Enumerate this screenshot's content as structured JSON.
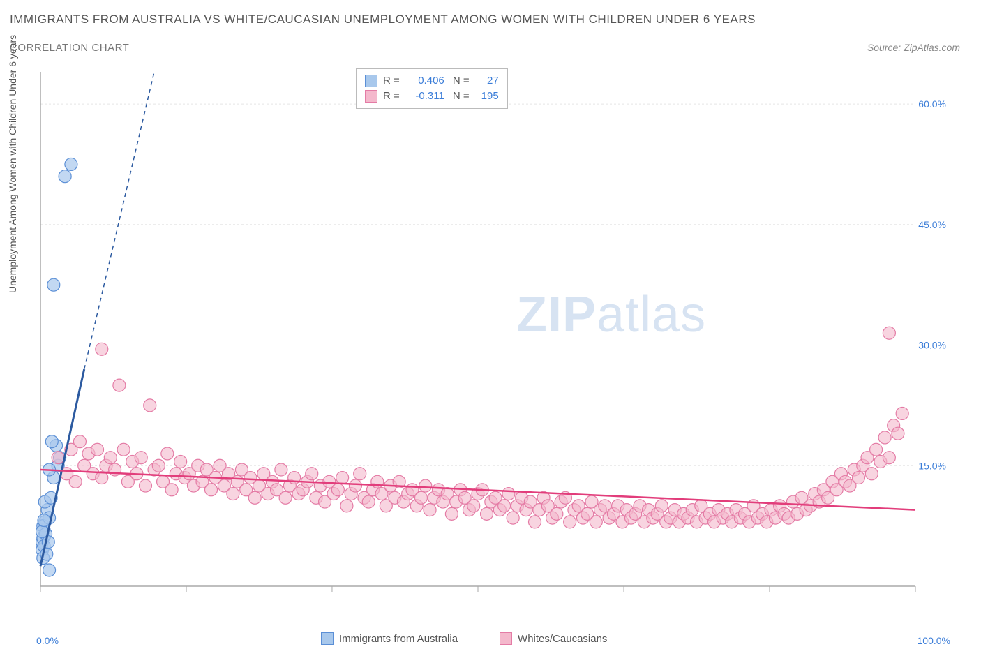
{
  "title": "IMMIGRANTS FROM AUSTRALIA VS WHITE/CAUCASIAN UNEMPLOYMENT AMONG WOMEN WITH CHILDREN UNDER 6 YEARS",
  "subtitle": "CORRELATION CHART",
  "source": "Source: ZipAtlas.com",
  "ylabel": "Unemployment Among Women with Children Under 6 years",
  "watermark_bold": "ZIP",
  "watermark_light": "atlas",
  "chart": {
    "type": "scatter",
    "xlim": [
      0,
      100
    ],
    "ylim": [
      0,
      64
    ],
    "x_axis_label_left": "0.0%",
    "x_axis_label_right": "100.0%",
    "y_ticks": [
      15.0,
      30.0,
      45.0,
      60.0
    ],
    "y_tick_labels": [
      "15.0%",
      "30.0%",
      "45.0%",
      "60.0%"
    ],
    "x_minor_ticks": [
      0,
      16.67,
      33.33,
      50,
      66.67,
      83.33,
      100
    ],
    "grid_color": "#e5e5e5",
    "axis_color": "#aaaaaa",
    "background": "#ffffff",
    "series": [
      {
        "name": "Immigrants from Australia",
        "color_fill": "#a8c8ec",
        "color_stroke": "#5b8fd6",
        "marker_radius": 9,
        "marker_opacity": 0.7,
        "trend": {
          "x1": 0,
          "y1": 2.5,
          "x2": 5,
          "y2": 27,
          "color": "#2c5aa0",
          "width": 3,
          "dash_extend": {
            "x2": 13,
            "y2": 64
          }
        },
        "R": "0.406",
        "N": "27",
        "points": [
          [
            0.2,
            5.5
          ],
          [
            0.3,
            6.0
          ],
          [
            0.4,
            7.0
          ],
          [
            0.2,
            4.5
          ],
          [
            0.5,
            8.0
          ],
          [
            0.3,
            7.5
          ],
          [
            0.6,
            6.5
          ],
          [
            0.4,
            5.0
          ],
          [
            0.8,
            9.5
          ],
          [
            0.3,
            3.5
          ],
          [
            0.7,
            4.0
          ],
          [
            0.5,
            10.5
          ],
          [
            1.0,
            8.5
          ],
          [
            0.2,
            6.8
          ],
          [
            1.2,
            11.0
          ],
          [
            0.4,
            8.2
          ],
          [
            0.9,
            5.5
          ],
          [
            1.5,
            13.5
          ],
          [
            2.0,
            15.0
          ],
          [
            1.8,
            17.5
          ],
          [
            2.2,
            16.0
          ],
          [
            1.3,
            18.0
          ],
          [
            1.0,
            14.5
          ],
          [
            1.5,
            37.5
          ],
          [
            2.8,
            51.0
          ],
          [
            3.5,
            52.5
          ],
          [
            1.0,
            2.0
          ]
        ]
      },
      {
        "name": "Whites/Caucasians",
        "color_fill": "#f4b8cc",
        "color_stroke": "#e47ba5",
        "marker_radius": 9,
        "marker_opacity": 0.6,
        "trend": {
          "x1": 0,
          "y1": 14.5,
          "x2": 100,
          "y2": 9.5,
          "color": "#e23d7b",
          "width": 2.5
        },
        "R": "-0.311",
        "N": "195",
        "points": [
          [
            2,
            16
          ],
          [
            3,
            14
          ],
          [
            3.5,
            17
          ],
          [
            4,
            13
          ],
          [
            4.5,
            18
          ],
          [
            5,
            15
          ],
          [
            5.5,
            16.5
          ],
          [
            6,
            14
          ],
          [
            6.5,
            17
          ],
          [
            7,
            13.5
          ],
          [
            7,
            29.5
          ],
          [
            7.5,
            15
          ],
          [
            8,
            16
          ],
          [
            8.5,
            14.5
          ],
          [
            9,
            25
          ],
          [
            9.5,
            17
          ],
          [
            10,
            13
          ],
          [
            10.5,
            15.5
          ],
          [
            11,
            14
          ],
          [
            11.5,
            16
          ],
          [
            12,
            12.5
          ],
          [
            12.5,
            22.5
          ],
          [
            13,
            14.5
          ],
          [
            13.5,
            15
          ],
          [
            14,
            13
          ],
          [
            14.5,
            16.5
          ],
          [
            15,
            12
          ],
          [
            15.5,
            14
          ],
          [
            16,
            15.5
          ],
          [
            16.5,
            13.5
          ],
          [
            17,
            14
          ],
          [
            17.5,
            12.5
          ],
          [
            18,
            15
          ],
          [
            18.5,
            13
          ],
          [
            19,
            14.5
          ],
          [
            19.5,
            12
          ],
          [
            20,
            13.5
          ],
          [
            20.5,
            15
          ],
          [
            21,
            12.5
          ],
          [
            21.5,
            14
          ],
          [
            22,
            11.5
          ],
          [
            22.5,
            13
          ],
          [
            23,
            14.5
          ],
          [
            23.5,
            12
          ],
          [
            24,
            13.5
          ],
          [
            24.5,
            11
          ],
          [
            25,
            12.5
          ],
          [
            25.5,
            14
          ],
          [
            26,
            11.5
          ],
          [
            26.5,
            13
          ],
          [
            27,
            12
          ],
          [
            27.5,
            14.5
          ],
          [
            28,
            11
          ],
          [
            28.5,
            12.5
          ],
          [
            29,
            13.5
          ],
          [
            29.5,
            11.5
          ],
          [
            30,
            12
          ],
          [
            30.5,
            13
          ],
          [
            31,
            14
          ],
          [
            31.5,
            11
          ],
          [
            32,
            12.5
          ],
          [
            32.5,
            10.5
          ],
          [
            33,
            13
          ],
          [
            33.5,
            11.5
          ],
          [
            34,
            12
          ],
          [
            34.5,
            13.5
          ],
          [
            35,
            10
          ],
          [
            35.5,
            11.5
          ],
          [
            36,
            12.5
          ],
          [
            36.5,
            14
          ],
          [
            37,
            11
          ],
          [
            37.5,
            10.5
          ],
          [
            38,
            12
          ],
          [
            38.5,
            13
          ],
          [
            39,
            11.5
          ],
          [
            39.5,
            10
          ],
          [
            40,
            12.5
          ],
          [
            40.5,
            11
          ],
          [
            41,
            13
          ],
          [
            41.5,
            10.5
          ],
          [
            42,
            11.5
          ],
          [
            42.5,
            12
          ],
          [
            43,
            10
          ],
          [
            43.5,
            11
          ],
          [
            44,
            12.5
          ],
          [
            44.5,
            9.5
          ],
          [
            45,
            11
          ],
          [
            45.5,
            12
          ],
          [
            46,
            10.5
          ],
          [
            46.5,
            11.5
          ],
          [
            47,
            9
          ],
          [
            47.5,
            10.5
          ],
          [
            48,
            12
          ],
          [
            48.5,
            11
          ],
          [
            49,
            9.5
          ],
          [
            49.5,
            10
          ],
          [
            50,
            11.5
          ],
          [
            50.5,
            12
          ],
          [
            51,
            9
          ],
          [
            51.5,
            10.5
          ],
          [
            52,
            11
          ],
          [
            52.5,
            9.5
          ],
          [
            53,
            10
          ],
          [
            53.5,
            11.5
          ],
          [
            54,
            8.5
          ],
          [
            54.5,
            10
          ],
          [
            55,
            11
          ],
          [
            55.5,
            9.5
          ],
          [
            56,
            10.5
          ],
          [
            56.5,
            8
          ],
          [
            57,
            9.5
          ],
          [
            57.5,
            11
          ],
          [
            58,
            10
          ],
          [
            58.5,
            8.5
          ],
          [
            59,
            9
          ],
          [
            59.5,
            10.5
          ],
          [
            60,
            11
          ],
          [
            60.5,
            8
          ],
          [
            61,
            9.5
          ],
          [
            61.5,
            10
          ],
          [
            62,
            8.5
          ],
          [
            62.5,
            9
          ],
          [
            63,
            10.5
          ],
          [
            63.5,
            8
          ],
          [
            64,
            9.5
          ],
          [
            64.5,
            10
          ],
          [
            65,
            8.5
          ],
          [
            65.5,
            9
          ],
          [
            66,
            10
          ],
          [
            66.5,
            8
          ],
          [
            67,
            9.5
          ],
          [
            67.5,
            8.5
          ],
          [
            68,
            9
          ],
          [
            68.5,
            10
          ],
          [
            69,
            8
          ],
          [
            69.5,
            9.5
          ],
          [
            70,
            8.5
          ],
          [
            70.5,
            9
          ],
          [
            71,
            10
          ],
          [
            71.5,
            8
          ],
          [
            72,
            8.5
          ],
          [
            72.5,
            9.5
          ],
          [
            73,
            8
          ],
          [
            73.5,
            9
          ],
          [
            74,
            8.5
          ],
          [
            74.5,
            9.5
          ],
          [
            75,
            8
          ],
          [
            75.5,
            10
          ],
          [
            76,
            8.5
          ],
          [
            76.5,
            9
          ],
          [
            77,
            8
          ],
          [
            77.5,
            9.5
          ],
          [
            78,
            8.5
          ],
          [
            78.5,
            9
          ],
          [
            79,
            8
          ],
          [
            79.5,
            9.5
          ],
          [
            80,
            8.5
          ],
          [
            80.5,
            9
          ],
          [
            81,
            8
          ],
          [
            81.5,
            10
          ],
          [
            82,
            8.5
          ],
          [
            82.5,
            9
          ],
          [
            83,
            8
          ],
          [
            83.5,
            9.5
          ],
          [
            84,
            8.5
          ],
          [
            84.5,
            10
          ],
          [
            85,
            9
          ],
          [
            85.5,
            8.5
          ],
          [
            86,
            10.5
          ],
          [
            86.5,
            9
          ],
          [
            87,
            11
          ],
          [
            87.5,
            9.5
          ],
          [
            88,
            10
          ],
          [
            88.5,
            11.5
          ],
          [
            89,
            10.5
          ],
          [
            89.5,
            12
          ],
          [
            90,
            11
          ],
          [
            90.5,
            13
          ],
          [
            91,
            12
          ],
          [
            91.5,
            14
          ],
          [
            92,
            13
          ],
          [
            92.5,
            12.5
          ],
          [
            93,
            14.5
          ],
          [
            93.5,
            13.5
          ],
          [
            94,
            15
          ],
          [
            94.5,
            16
          ],
          [
            95,
            14
          ],
          [
            95.5,
            17
          ],
          [
            96,
            15.5
          ],
          [
            96.5,
            18.5
          ],
          [
            97,
            16
          ],
          [
            97.5,
            20
          ],
          [
            98,
            19
          ],
          [
            98.5,
            21.5
          ],
          [
            97,
            31.5
          ]
        ]
      }
    ],
    "legend_bottom": [
      {
        "label": "Immigrants from Australia",
        "fill": "#a8c8ec",
        "stroke": "#5b8fd6"
      },
      {
        "label": "Whites/Caucasians",
        "fill": "#f4b8cc",
        "stroke": "#e47ba5"
      }
    ]
  }
}
